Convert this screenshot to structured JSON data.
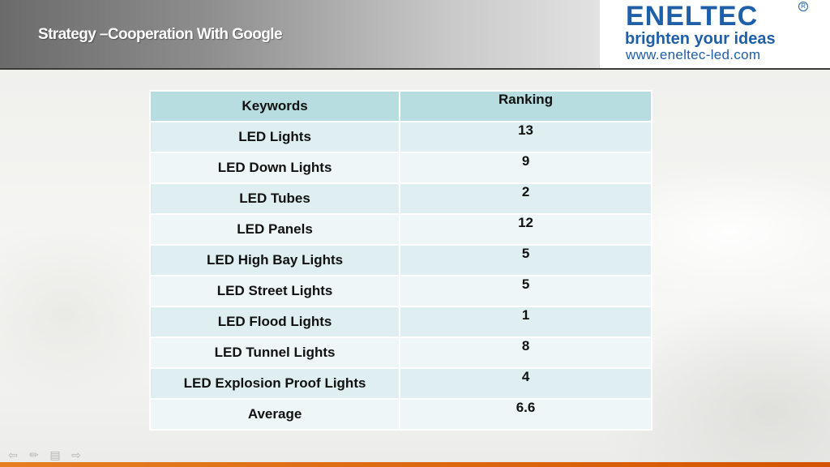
{
  "slide": {
    "title": "Strategy –Cooperation With Google"
  },
  "logo": {
    "brand": "ENELTEC",
    "registered": "R",
    "tagline": "brighten your ideas",
    "url": "www.eneltec-led.com"
  },
  "table": {
    "headers": [
      "Keywords",
      "Ranking"
    ],
    "rows": [
      {
        "keyword": "LED Lights",
        "ranking": "13"
      },
      {
        "keyword": "LED Down Lights",
        "ranking": "9"
      },
      {
        "keyword": "LED Tubes",
        "ranking": "2"
      },
      {
        "keyword": "LED Panels",
        "ranking": "12"
      },
      {
        "keyword": "LED High Bay Lights",
        "ranking": "5"
      },
      {
        "keyword": "LED Street Lights",
        "ranking": "5"
      },
      {
        "keyword": "LED Flood Lights",
        "ranking": "1"
      },
      {
        "keyword": "LED Tunnel Lights",
        "ranking": "8"
      },
      {
        "keyword": "LED Explosion Proof Lights",
        "ranking": "4"
      },
      {
        "keyword": "Average",
        "ranking": "6.6"
      }
    ]
  },
  "nav": {
    "icons": [
      "back-arrow-icon",
      "pen-icon",
      "slide-menu-icon",
      "forward-arrow-icon"
    ]
  },
  "colors": {
    "header_dark": "#6b6b6b",
    "brand_blue": "#1f5fa8",
    "table_header": "#b7dde0",
    "table_row_a": "#dfeef0",
    "table_row_b": "#eef6f7",
    "footer_orange": "#e67e22"
  }
}
